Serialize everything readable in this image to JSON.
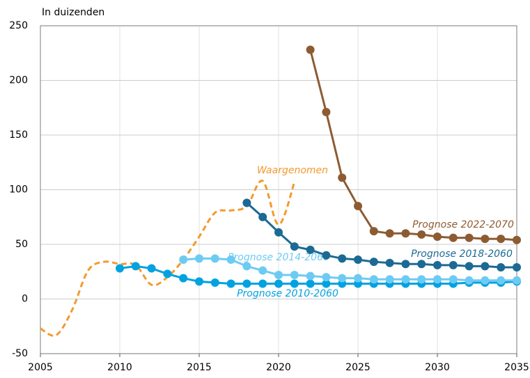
{
  "chart_data": {
    "type": "line",
    "y_label": "In duizenden",
    "x": [
      2005,
      2006,
      2007,
      2008,
      2009,
      2010,
      2011,
      2012,
      2013,
      2014,
      2015,
      2016,
      2017,
      2018,
      2019,
      2020,
      2021,
      2022,
      2023,
      2024,
      2025,
      2026,
      2027,
      2028,
      2029,
      2030,
      2031,
      2032,
      2033,
      2034,
      2035
    ],
    "series": [
      {
        "name": "Waargenomen",
        "color": "#f39a2d",
        "dashed": true,
        "markers": false,
        "values": [
          -27,
          -33,
          -10,
          26,
          34,
          32,
          31,
          13,
          20,
          36,
          57,
          79,
          81,
          85,
          108,
          68,
          107,
          null,
          null,
          null,
          null,
          null,
          null,
          null,
          null,
          null,
          null,
          null,
          null,
          null,
          null
        ]
      },
      {
        "name": "Prognose 2010-2060",
        "color": "#00a2e1",
        "dashed": false,
        "markers": true,
        "values": [
          null,
          null,
          null,
          null,
          null,
          28,
          30,
          28,
          23,
          19,
          16,
          15,
          14,
          14,
          14,
          14,
          14,
          14,
          14,
          14,
          14,
          14,
          14,
          14,
          14,
          14,
          14,
          15,
          15,
          15,
          16
        ]
      },
      {
        "name": "Prognose 2014-2060",
        "color": "#6dcbf3",
        "dashed": false,
        "markers": true,
        "values": [
          null,
          null,
          null,
          null,
          null,
          null,
          null,
          null,
          null,
          36,
          37,
          37,
          36,
          30,
          26,
          22,
          22,
          21,
          20,
          19,
          19,
          18,
          18,
          18,
          18,
          18,
          18,
          17,
          17,
          17,
          17
        ]
      },
      {
        "name": "Prognose 2018-2060",
        "color": "#1c6a94",
        "dashed": false,
        "markers": true,
        "values": [
          null,
          null,
          null,
          null,
          null,
          null,
          null,
          null,
          null,
          null,
          null,
          null,
          null,
          88,
          75,
          61,
          48,
          45,
          40,
          37,
          36,
          34,
          33,
          32,
          32,
          31,
          31,
          30,
          30,
          29,
          29
        ]
      },
      {
        "name": "Prognose 2022-2070",
        "color": "#8d5b32",
        "dashed": false,
        "markers": true,
        "values": [
          null,
          null,
          null,
          null,
          null,
          null,
          null,
          null,
          null,
          null,
          null,
          null,
          null,
          null,
          null,
          null,
          null,
          228,
          171,
          111,
          85,
          62,
          60,
          60,
          59,
          57,
          56,
          56,
          55,
          55,
          54
        ]
      }
    ],
    "xlim": [
      2005,
      2035
    ],
    "xticks": [
      2005,
      2010,
      2015,
      2020,
      2025,
      2030,
      2035
    ],
    "ylim": [
      -50,
      250
    ],
    "yticks": [
      -50,
      0,
      50,
      100,
      150,
      200,
      250
    ],
    "grid": true
  }
}
